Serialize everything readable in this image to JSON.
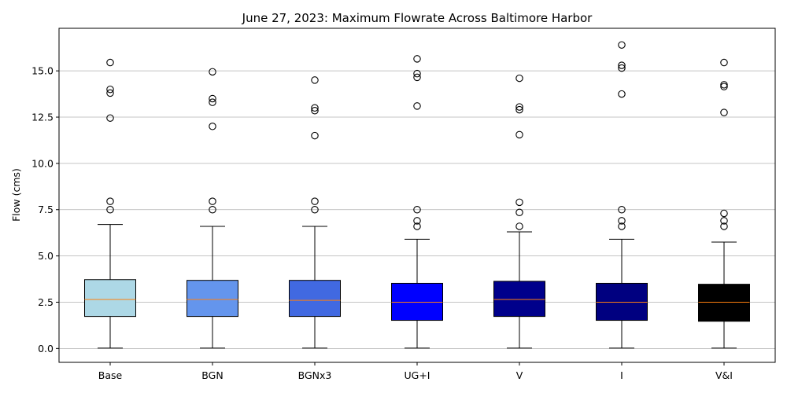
{
  "chart_data": {
    "type": "box",
    "title": "June 27, 2023: Maximum Flowrate Across Baltimore Harbor",
    "xlabel": "",
    "ylabel": "Flow (cms)",
    "ylim": [
      -0.75,
      17.3
    ],
    "yticks": [
      0.0,
      2.5,
      5.0,
      7.5,
      10.0,
      12.5,
      15.0
    ],
    "ytick_labels": [
      "0.0",
      "2.5",
      "5.0",
      "7.5",
      "10.0",
      "12.5",
      "15.0"
    ],
    "grid": "horizontal",
    "median_color": "#ff7f0e",
    "categories": [
      "Base",
      "BGN",
      "BGNx3",
      "UG+I",
      "V",
      "I",
      "V&I"
    ],
    "series": [
      {
        "category": "Base",
        "color": "#add8e6",
        "whisker_low": 0.02,
        "q1": 1.73,
        "median": 2.65,
        "q3": 3.72,
        "whisker_high": 6.7,
        "outliers": [
          7.5,
          7.95,
          12.45,
          13.8,
          14.0,
          15.45
        ]
      },
      {
        "category": "BGN",
        "color": "#6495ed",
        "whisker_low": 0.02,
        "q1": 1.73,
        "median": 2.65,
        "q3": 3.68,
        "whisker_high": 6.6,
        "outliers": [
          7.5,
          7.95,
          12.0,
          13.3,
          13.5,
          14.95
        ]
      },
      {
        "category": "BGNx3",
        "color": "#4169e1",
        "whisker_low": 0.02,
        "q1": 1.73,
        "median": 2.6,
        "q3": 3.68,
        "whisker_high": 6.6,
        "outliers": [
          7.5,
          7.95,
          11.5,
          12.85,
          13.0,
          14.5
        ]
      },
      {
        "category": "UG+I",
        "color": "#0000ff",
        "whisker_low": 0.02,
        "q1": 1.52,
        "median": 2.5,
        "q3": 3.52,
        "whisker_high": 5.9,
        "outliers": [
          6.6,
          6.9,
          7.5,
          13.1,
          14.65,
          14.85,
          15.65
        ]
      },
      {
        "category": "V",
        "color": "#00008b",
        "whisker_low": 0.02,
        "q1": 1.73,
        "median": 2.65,
        "q3": 3.63,
        "whisker_high": 6.3,
        "outliers": [
          6.6,
          7.35,
          7.9,
          11.55,
          12.9,
          13.05,
          14.6
        ]
      },
      {
        "category": "I",
        "color": "#000080",
        "whisker_low": 0.02,
        "q1": 1.52,
        "median": 2.5,
        "q3": 3.52,
        "whisker_high": 5.9,
        "outliers": [
          6.6,
          6.9,
          7.5,
          13.75,
          15.15,
          15.3,
          16.4
        ]
      },
      {
        "category": "V&I",
        "color": "#000000",
        "whisker_low": 0.02,
        "q1": 1.47,
        "median": 2.5,
        "q3": 3.47,
        "whisker_high": 5.75,
        "outliers": [
          6.6,
          6.9,
          7.3,
          12.75,
          14.15,
          14.25,
          15.45
        ]
      }
    ]
  }
}
